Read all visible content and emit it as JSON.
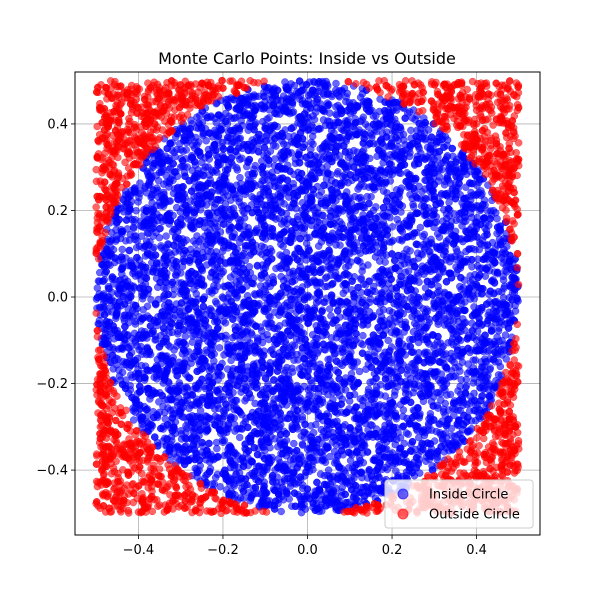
{
  "chart_data": {
    "type": "scatter",
    "title": "Monte Carlo Points: Inside vs Outside",
    "xlabel": "",
    "ylabel": "",
    "xlim": [
      -0.55,
      0.55
    ],
    "ylim": [
      -0.55,
      0.52
    ],
    "xticks": [
      -0.4,
      -0.2,
      0.0,
      0.2,
      0.4
    ],
    "xtick_labels": [
      "−0.4",
      "−0.2",
      "0.0",
      "0.2",
      "0.4"
    ],
    "yticks": [
      -0.4,
      -0.2,
      0.0,
      0.2,
      0.4
    ],
    "ytick_labels": [
      "−0.4",
      "−0.2",
      "0.0",
      "0.2",
      "0.4"
    ],
    "grid": true,
    "legend_position": "lower-right",
    "sampling": {
      "x_range": [
        -0.5,
        0.5
      ],
      "y_range": [
        -0.5,
        0.5
      ],
      "circle_center": [
        0.0,
        0.0
      ],
      "circle_radius": 0.5
    },
    "series": [
      {
        "name": "Inside Circle",
        "color": "#0000ff",
        "opacity": 0.6,
        "points": [
          [
            0.0,
            0.0
          ],
          [
            0.1,
            0.1
          ],
          [
            -0.1,
            0.2
          ],
          [
            0.2,
            -0.2
          ],
          [
            -0.25,
            -0.15
          ],
          [
            0.3,
            0.2
          ],
          [
            -0.3,
            0.3
          ],
          [
            0.05,
            -0.4
          ],
          [
            0.4,
            -0.1
          ],
          [
            -0.4,
            0.05
          ],
          [
            0.07,
            0.24
          ],
          [
            -0.18,
            -0.35
          ],
          [
            0.35,
            0.3
          ],
          [
            -0.05,
            0.45
          ],
          [
            0.45,
            0.12
          ]
        ]
      },
      {
        "name": "Outside Circle",
        "color": "#ff0000",
        "opacity": 0.6,
        "points": [
          [
            0.45,
            0.45
          ],
          [
            -0.45,
            0.45
          ],
          [
            0.45,
            -0.45
          ],
          [
            -0.45,
            -0.45
          ],
          [
            0.4,
            0.4
          ],
          [
            -0.42,
            0.38
          ],
          [
            0.38,
            -0.42
          ],
          [
            -0.4,
            -0.4
          ],
          [
            0.49,
            0.3
          ],
          [
            -0.49,
            -0.3
          ],
          [
            0.3,
            -0.49
          ],
          [
            -0.3,
            0.49
          ],
          [
            0.48,
            -0.25
          ],
          [
            -0.48,
            0.25
          ],
          [
            0.2,
            0.48
          ],
          [
            -0.2,
            -0.48
          ]
        ]
      }
    ]
  }
}
